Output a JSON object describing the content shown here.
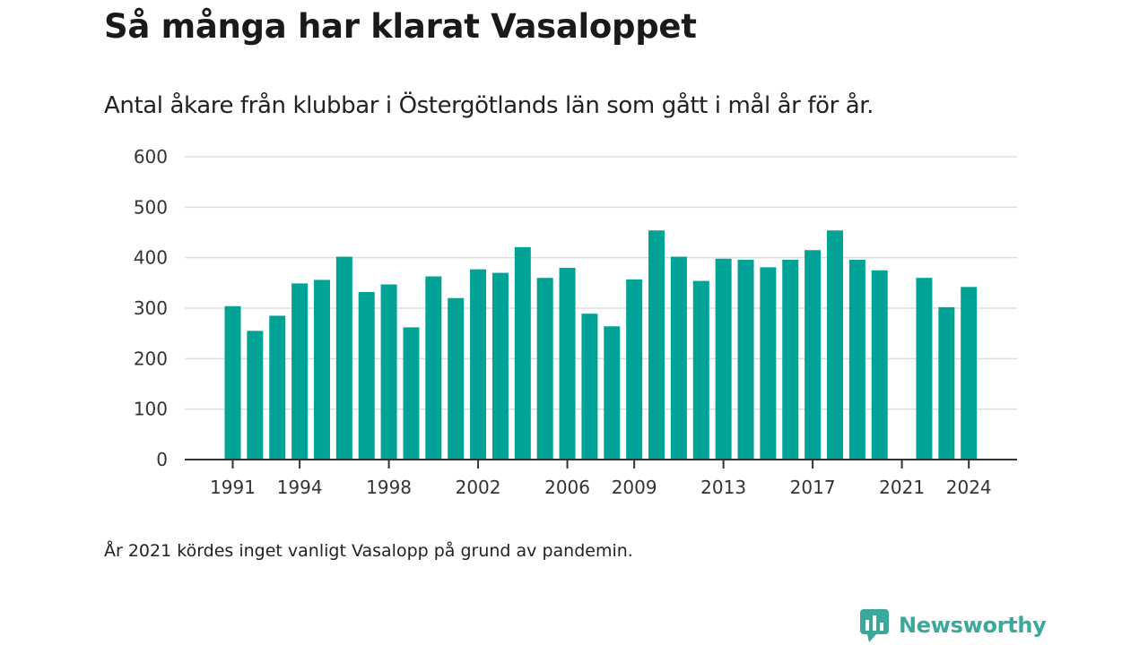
{
  "header": {
    "title": "Så många har klarat Vasaloppet",
    "subtitle": "Antal åkare från klubbar i Östergötlands län som gått i mål år för år."
  },
  "footer": {
    "note": "År 2021 kördes inget vanligt Vasalopp på grund av pandemin.",
    "brand": "Newsworthy"
  },
  "colors": {
    "bar": "#00a396",
    "grid": "#dddddd",
    "axis": "#333333",
    "brand": "#3aa89a"
  },
  "chart_data": {
    "type": "bar",
    "title": "",
    "xlabel": "",
    "ylabel": "",
    "ylim": [
      0,
      600
    ],
    "y_ticks": [
      0,
      100,
      200,
      300,
      400,
      500,
      600
    ],
    "x_tick_labels": [
      "1991",
      "1994",
      "1998",
      "2002",
      "2006",
      "2009",
      "2013",
      "2017",
      "2021",
      "2024"
    ],
    "grid": true,
    "legend": "none",
    "categories": [
      1991,
      1992,
      1993,
      1994,
      1995,
      1996,
      1997,
      1998,
      1999,
      2000,
      2001,
      2002,
      2003,
      2004,
      2005,
      2006,
      2007,
      2008,
      2009,
      2010,
      2011,
      2012,
      2013,
      2014,
      2015,
      2016,
      2017,
      2018,
      2019,
      2020,
      2021,
      2022,
      2023,
      2024
    ],
    "values": [
      304,
      255,
      285,
      349,
      356,
      402,
      332,
      347,
      262,
      363,
      320,
      377,
      370,
      421,
      360,
      380,
      289,
      264,
      357,
      454,
      402,
      354,
      398,
      396,
      381,
      396,
      415,
      454,
      396,
      375,
      null,
      360,
      302,
      342
    ]
  }
}
